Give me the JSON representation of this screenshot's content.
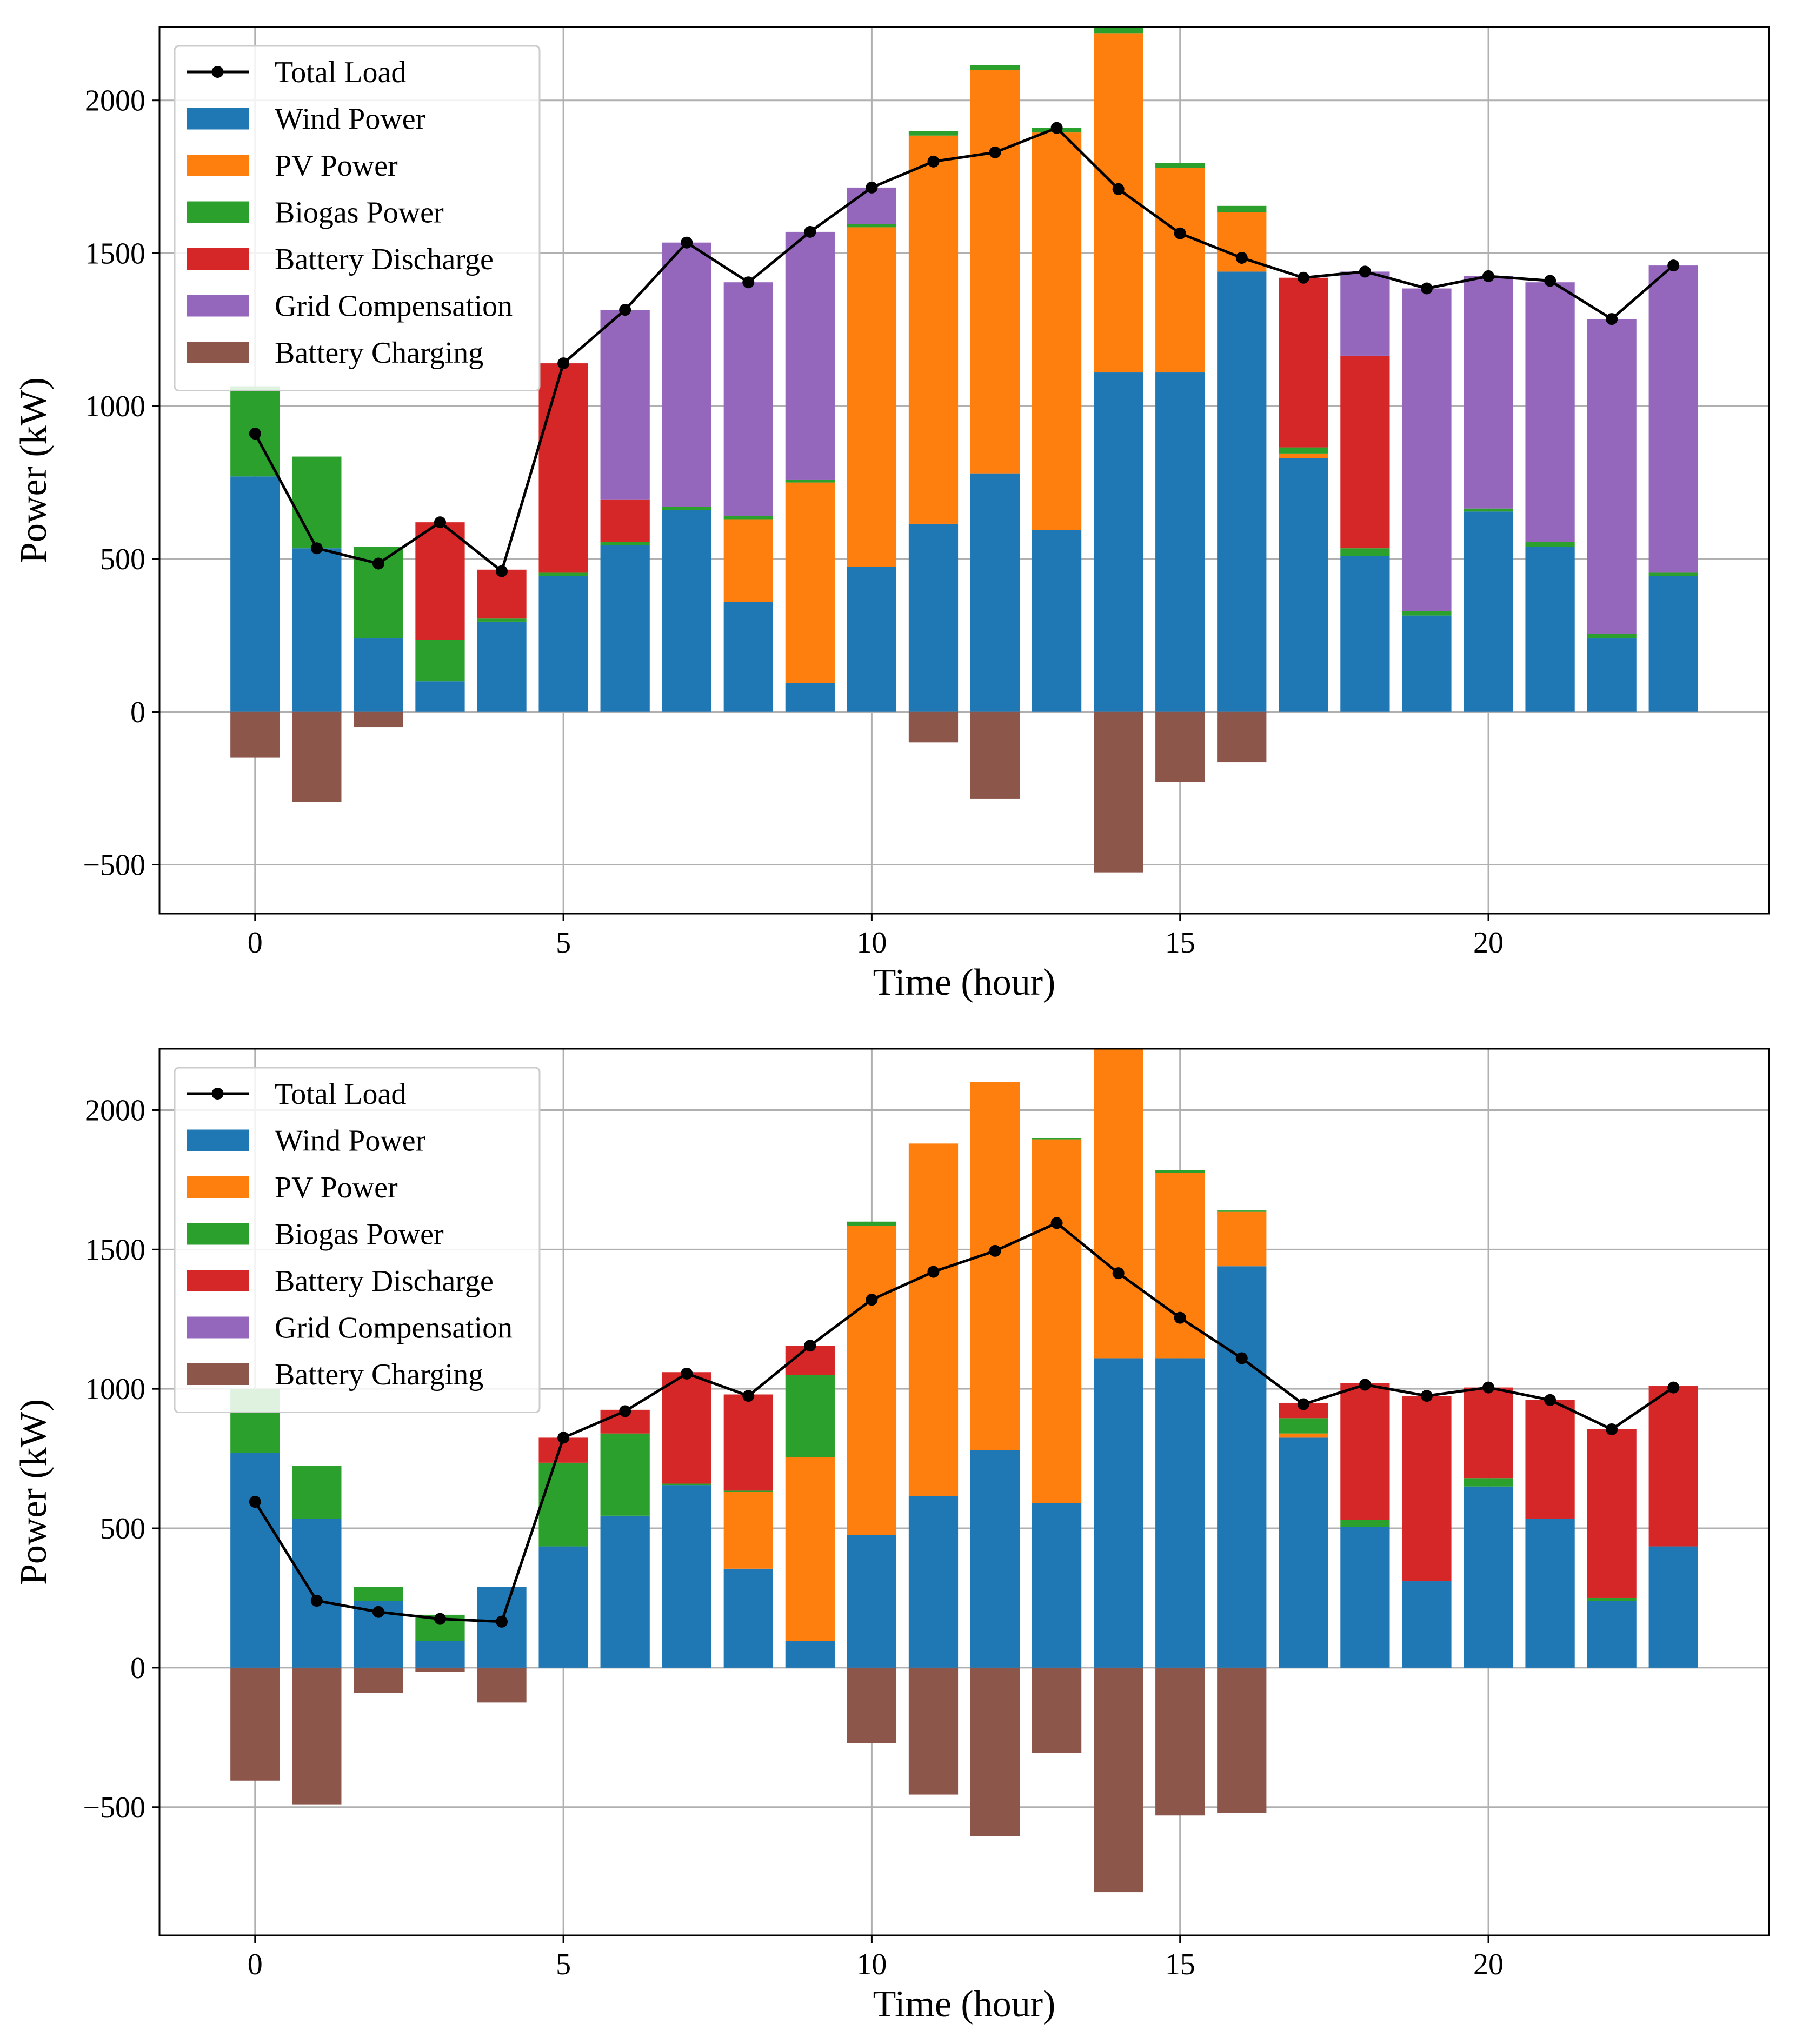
{
  "chart_data": [
    {
      "type": "bar",
      "stacked": true,
      "title": "",
      "xlabel": "Time (hour)",
      "ylabel": "Power (kW)",
      "xlim": [
        -1.55,
        24.55
      ],
      "ylim": [
        -660,
        2240
      ],
      "xticks": [
        0,
        5,
        10,
        15,
        20
      ],
      "yticks": [
        -500,
        0,
        500,
        1000,
        1500,
        2000
      ],
      "xtick_labels": [
        "0",
        "5",
        "10",
        "15",
        "20"
      ],
      "ytick_labels": [
        "−500",
        "0",
        "500",
        "1000",
        "1500",
        "2000"
      ],
      "grid": true,
      "legend_position": "upper-left",
      "x": [
        0,
        1,
        2,
        3,
        4,
        5,
        6,
        7,
        8,
        9,
        10,
        11,
        12,
        13,
        14,
        15,
        16,
        17,
        18,
        19,
        20,
        21,
        22,
        23
      ],
      "series": [
        {
          "name": "Total Load",
          "kind": "line",
          "color": "#000000",
          "values": [
            910,
            535,
            485,
            620,
            460,
            1140,
            1315,
            1535,
            1405,
            1570,
            1715,
            1800,
            1830,
            1910,
            1710,
            1565,
            1485,
            1420,
            1440,
            1385,
            1425,
            1410,
            1285,
            1460
          ]
        },
        {
          "name": "Wind Power",
          "kind": "bar",
          "color": "#1f77b4",
          "values": [
            770,
            535,
            240,
            100,
            295,
            445,
            545,
            660,
            360,
            95,
            475,
            615,
            780,
            595,
            1110,
            1110,
            1440,
            830,
            510,
            315,
            655,
            540,
            240,
            445
          ]
        },
        {
          "name": "PV Power",
          "kind": "bar",
          "color": "#ff7f0e",
          "values": [
            0,
            0,
            0,
            0,
            0,
            0,
            0,
            0,
            270,
            655,
            1110,
            1270,
            1320,
            1300,
            1110,
            670,
            195,
            15,
            0,
            0,
            0,
            0,
            0,
            0
          ]
        },
        {
          "name": "Biogas Power",
          "kind": "bar",
          "color": "#2ca02c",
          "values": [
            295,
            300,
            300,
            135,
            10,
            10,
            10,
            10,
            10,
            10,
            10,
            15,
            15,
            15,
            20,
            15,
            20,
            20,
            25,
            15,
            10,
            15,
            15,
            10
          ]
        },
        {
          "name": "Battery Discharge",
          "kind": "bar",
          "color": "#d62728",
          "values": [
            0,
            0,
            0,
            385,
            160,
            685,
            140,
            0,
            0,
            0,
            0,
            0,
            0,
            0,
            0,
            0,
            0,
            555,
            630,
            0,
            0,
            0,
            0,
            0
          ]
        },
        {
          "name": "Grid Compensation",
          "kind": "bar",
          "color": "#9467bd",
          "values": [
            0,
            0,
            0,
            0,
            0,
            0,
            620,
            865,
            765,
            810,
            120,
            0,
            0,
            0,
            0,
            0,
            0,
            0,
            275,
            1055,
            760,
            850,
            1030,
            1005
          ]
        },
        {
          "name": "Battery Charging",
          "kind": "bar",
          "color": "#8c564b",
          "values": [
            -150,
            -295,
            -50,
            0,
            0,
            0,
            0,
            0,
            0,
            0,
            0,
            -100,
            -285,
            0,
            -525,
            -230,
            -165,
            0,
            0,
            0,
            0,
            0,
            0,
            0
          ]
        }
      ]
    },
    {
      "type": "bar",
      "stacked": true,
      "title": "",
      "xlabel": "Time (hour)",
      "ylabel": "Power (kW)",
      "xlim": [
        -1.55,
        24.55
      ],
      "ylim": [
        -960,
        2220
      ],
      "xticks": [
        0,
        5,
        10,
        15,
        20
      ],
      "yticks": [
        -500,
        0,
        500,
        1000,
        1500,
        2000
      ],
      "xtick_labels": [
        "0",
        "5",
        "10",
        "15",
        "20"
      ],
      "ytick_labels": [
        "−500",
        "0",
        "500",
        "1000",
        "1500",
        "2000"
      ],
      "grid": true,
      "legend_position": "upper-left",
      "x": [
        0,
        1,
        2,
        3,
        4,
        5,
        6,
        7,
        8,
        9,
        10,
        11,
        12,
        13,
        14,
        15,
        16,
        17,
        18,
        19,
        20,
        21,
        22,
        23
      ],
      "series": [
        {
          "name": "Total Load",
          "kind": "line",
          "color": "#000000",
          "values": [
            595,
            240,
            200,
            175,
            165,
            825,
            920,
            1055,
            975,
            1155,
            1320,
            1420,
            1495,
            1595,
            1415,
            1255,
            1110,
            945,
            1015,
            975,
            1005,
            960,
            855,
            1005
          ]
        },
        {
          "name": "Wind Power",
          "kind": "bar",
          "color": "#1f77b4",
          "values": [
            770,
            535,
            240,
            95,
            290,
            435,
            545,
            655,
            355,
            95,
            475,
            615,
            780,
            590,
            1110,
            1110,
            1440,
            825,
            505,
            310,
            650,
            535,
            240,
            435
          ]
        },
        {
          "name": "PV Power",
          "kind": "bar",
          "color": "#ff7f0e",
          "values": [
            0,
            0,
            0,
            0,
            0,
            0,
            0,
            0,
            275,
            660,
            1110,
            1265,
            1320,
            1305,
            1110,
            665,
            195,
            15,
            0,
            0,
            0,
            0,
            0,
            0
          ]
        },
        {
          "name": "Biogas Power",
          "kind": "bar",
          "color": "#2ca02c",
          "values": [
            230,
            190,
            50,
            95,
            0,
            300,
            295,
            5,
            5,
            295,
            15,
            0,
            0,
            5,
            0,
            10,
            5,
            55,
            25,
            0,
            30,
            0,
            10,
            0
          ]
        },
        {
          "name": "Battery Discharge",
          "kind": "bar",
          "color": "#d62728",
          "values": [
            0,
            0,
            0,
            0,
            0,
            90,
            85,
            400,
            345,
            105,
            0,
            0,
            0,
            0,
            0,
            0,
            0,
            55,
            490,
            665,
            325,
            425,
            605,
            575
          ]
        },
        {
          "name": "Grid Compensation",
          "kind": "bar",
          "color": "#9467bd",
          "values": [
            0,
            0,
            0,
            0,
            0,
            0,
            0,
            0,
            0,
            0,
            0,
            0,
            0,
            0,
            0,
            0,
            0,
            0,
            0,
            0,
            0,
            0,
            0,
            0
          ]
        },
        {
          "name": "Battery Charging",
          "kind": "bar",
          "color": "#8c564b",
          "values": [
            -405,
            -490,
            -90,
            -15,
            -125,
            0,
            0,
            0,
            0,
            0,
            -270,
            -455,
            -605,
            -305,
            -805,
            -530,
            -520,
            0,
            0,
            0,
            0,
            0,
            0,
            0
          ]
        }
      ]
    }
  ]
}
